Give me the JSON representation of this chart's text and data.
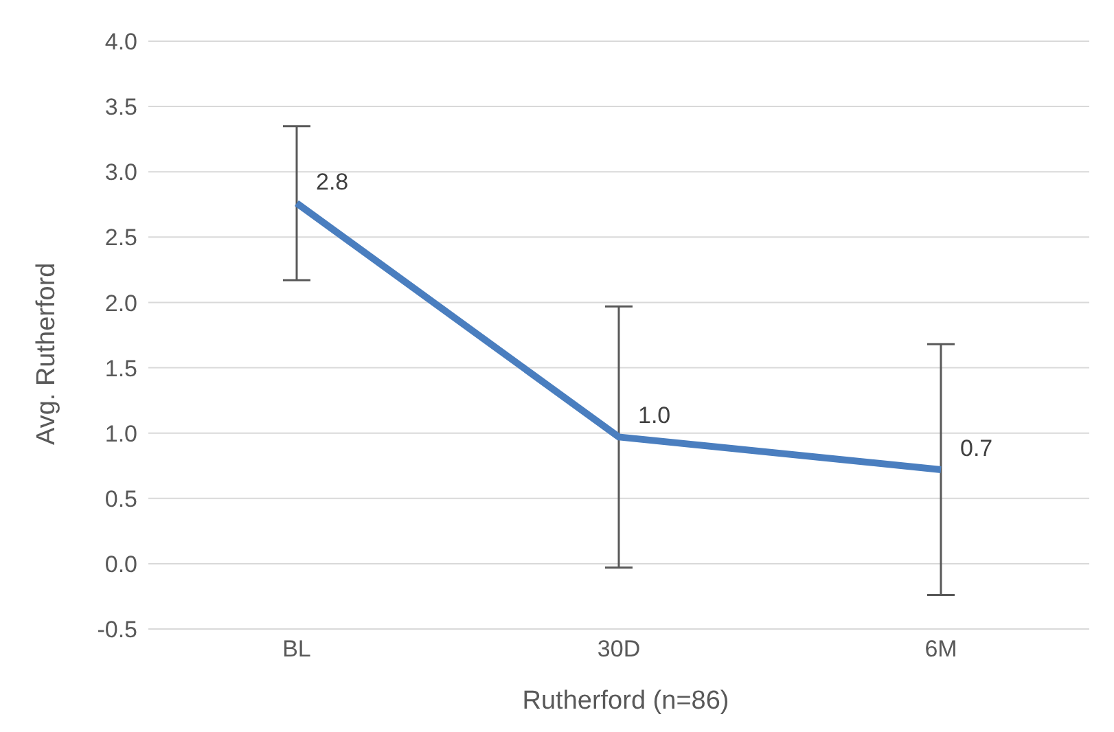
{
  "chart_data": {
    "type": "line",
    "xlabel": "Rutherford (n=86)",
    "ylabel": "Avg. Rutherford",
    "categories": [
      "BL",
      "30D",
      "6M"
    ],
    "series": [
      {
        "color": "#4a7ebf",
        "values": [
          2.76,
          0.97,
          0.72
        ],
        "value_labels": [
          "2.8",
          "1.0",
          "0.7"
        ],
        "errors": [
          0.59,
          1.0,
          0.96
        ]
      }
    ],
    "ylim": [
      -0.5,
      4.0
    ],
    "yticks": [
      {
        "value": -0.5,
        "label": "-0.5"
      },
      {
        "value": 0,
        "label": "0.0"
      },
      {
        "value": 0.5,
        "label": "0.5"
      },
      {
        "value": 1,
        "label": "1.0"
      },
      {
        "value": 1.5,
        "label": "1.5"
      },
      {
        "value": 2,
        "label": "2.0"
      },
      {
        "value": 2.5,
        "label": "2.5"
      },
      {
        "value": 3,
        "label": "3.0"
      },
      {
        "value": 3.5,
        "label": "3.5"
      },
      {
        "value": 4,
        "label": "4.0"
      }
    ],
    "grid": "y",
    "marker": "none",
    "line_style": "solid",
    "legend": false
  }
}
